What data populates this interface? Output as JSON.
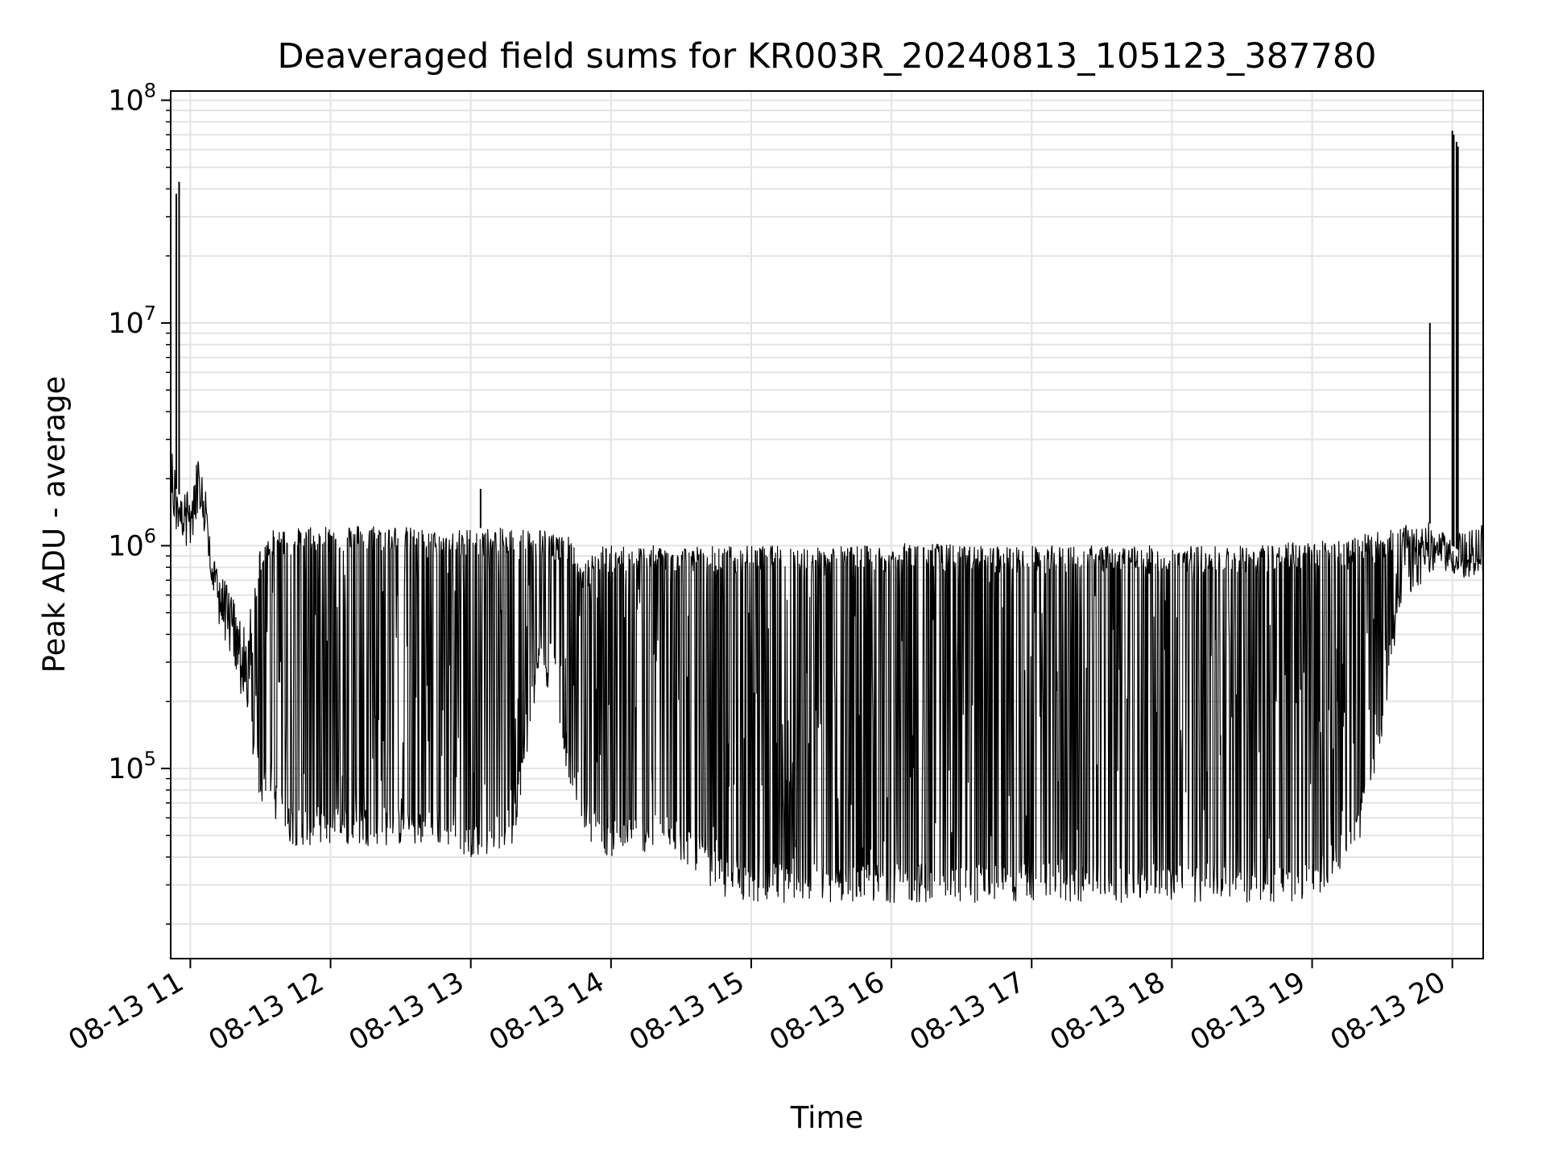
{
  "chart_data": {
    "type": "line",
    "title": "Deaveraged field sums for KR003R_20240813_105123_387780",
    "xlabel": "Time",
    "ylabel": "Peak ADU - average",
    "yscale": "log",
    "ylim": [
      14000,
      110000000
    ],
    "xlim_hours": [
      10.86,
      20.22
    ],
    "grid": true,
    "line_color": "#000000",
    "x_ticks": [
      {
        "hour": 11,
        "label": "08-13 11"
      },
      {
        "hour": 12,
        "label": "08-13 12"
      },
      {
        "hour": 13,
        "label": "08-13 13"
      },
      {
        "hour": 14,
        "label": "08-13 14"
      },
      {
        "hour": 15,
        "label": "08-13 15"
      },
      {
        "hour": 16,
        "label": "08-13 16"
      },
      {
        "hour": 17,
        "label": "08-13 17"
      },
      {
        "hour": 18,
        "label": "08-13 18"
      },
      {
        "hour": 19,
        "label": "08-13 19"
      },
      {
        "hour": 20,
        "label": "08-13 20"
      }
    ],
    "y_ticks": [
      {
        "value": 100000,
        "base": "10",
        "exp": "5"
      },
      {
        "value": 1000000,
        "base": "10",
        "exp": "6"
      },
      {
        "value": 10000000,
        "base": "10",
        "exp": "7"
      },
      {
        "value": 100000000,
        "base": "10",
        "exp": "8"
      }
    ],
    "series": [
      {
        "x_hours": [
          10.86,
          10.88,
          10.9,
          10.92,
          10.94,
          10.96,
          10.98,
          11.0,
          11.05,
          11.1,
          11.15,
          11.2,
          11.3,
          11.4,
          11.5,
          11.6,
          11.7,
          11.8,
          12.0,
          12.2,
          12.4,
          12.6,
          12.8,
          13.0,
          13.2,
          13.3,
          13.5,
          13.7,
          13.8,
          13.9,
          14.0,
          14.2,
          14.4,
          14.6,
          14.7,
          14.8,
          15.0,
          15.2,
          15.4,
          15.6,
          15.8,
          16.0,
          16.2,
          16.5,
          17.0,
          17.5,
          18.0,
          18.5,
          19.0,
          19.3,
          19.45,
          19.6,
          19.7,
          19.8,
          19.9,
          19.96,
          20.0,
          20.05,
          20.1,
          20.15,
          20.22
        ],
        "y_low": [
          1300000,
          1300000,
          1000000,
          1200000,
          1100000,
          1000000,
          1000000,
          900000,
          1000000,
          1100000,
          600000,
          450000,
          300000,
          160000,
          70000,
          60000,
          45000,
          45000,
          45000,
          45000,
          45000,
          45000,
          45000,
          40000,
          42000,
          45000,
          300000,
          90000,
          55000,
          42000,
          40000,
          42000,
          42000,
          35000,
          30000,
          26000,
          25000,
          25000,
          25000,
          25000,
          25000,
          25000,
          25000,
          25000,
          25000,
          25000,
          25000,
          25000,
          25000,
          40000,
          80000,
          400000,
          600000,
          700000,
          750000,
          750000,
          700000,
          800000,
          750000,
          800000,
          850000
        ],
        "y_high": [
          2500000,
          2800000,
          1800000,
          1700000,
          1600000,
          1700000,
          2200000,
          1500000,
          2500000,
          2200000,
          900000,
          800000,
          600000,
          400000,
          1000000,
          1200000,
          1200000,
          1200000,
          1250000,
          1250000,
          1250000,
          1200000,
          1150000,
          1200000,
          1200000,
          1200000,
          1200000,
          1100000,
          800000,
          1000000,
          1000000,
          1000000,
          1000000,
          1000000,
          1000000,
          1000000,
          1000000,
          1000000,
          1000000,
          1000000,
          1000000,
          1000000,
          1050000,
          1000000,
          1000000,
          1000000,
          1000000,
          1000000,
          1050000,
          1100000,
          1150000,
          1200000,
          1250000,
          1300000,
          1200000,
          1100000,
          1000000,
          950000,
          900000,
          950000,
          950000
        ]
      }
    ],
    "spikes": [
      {
        "hour": 10.9,
        "value": 38000000
      },
      {
        "hour": 10.92,
        "value": 43000000
      },
      {
        "hour": 13.07,
        "value": 1800000
      },
      {
        "hour": 19.84,
        "value": 10000000
      },
      {
        "hour": 20.0,
        "value": 73000000
      },
      {
        "hour": 20.01,
        "value": 70000000
      },
      {
        "hour": 20.03,
        "value": 65000000
      },
      {
        "hour": 20.04,
        "value": 62000000
      }
    ]
  }
}
